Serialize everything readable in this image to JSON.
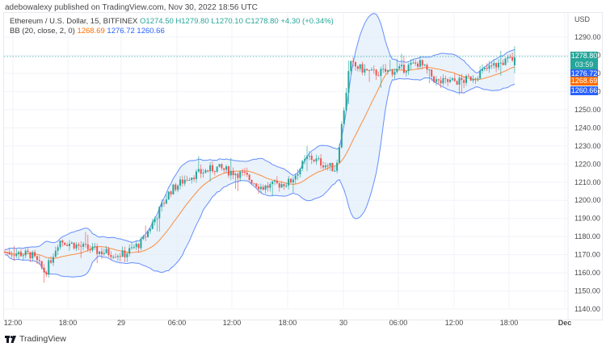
{
  "header": {
    "publisher_line": "adebowalexy published on TradingView.com, Nov 30, 2022 18:56 UTC"
  },
  "legend": {
    "symbol": "Ethereum / U.S. Dollar, 15, BITFINEX",
    "open": "O1274.50",
    "high": "H1279.80",
    "low": "L1270.10",
    "close": "C1278.80",
    "change": "+4.30 (+0.34%)",
    "bb_label": "BB (20, close, 2, 0)",
    "bb_basis": "1268.69",
    "bb_upper": "1276.72",
    "bb_lower": "1260.66"
  },
  "price_axis": {
    "currency": "USD",
    "ticks": [
      "1290.00",
      "1280.00",
      "1270.00",
      "1260.00",
      "1250.00",
      "1240.00",
      "1230.00",
      "1220.00",
      "1210.00",
      "1200.00",
      "1190.00",
      "1180.00",
      "1170.00",
      "1160.00",
      "1150.00",
      "1140.00"
    ],
    "tags": {
      "last_price": "1278.80",
      "countdown": "03:59",
      "bb_upper": "1276.72",
      "bb_basis": "1268.69",
      "bb_lower": "1260.66"
    }
  },
  "time_axis": {
    "labels": [
      "12:00",
      "18:00",
      "29",
      "06:00",
      "12:00",
      "18:00",
      "30",
      "06:00",
      "12:00",
      "18:00",
      "Dec"
    ]
  },
  "footer": {
    "brand": "TradingView"
  },
  "colors": {
    "up": "#26a69a",
    "down": "#ef5350",
    "bb_band": "#2962ff",
    "bb_basis": "#ff6d00",
    "bb_fill": "#e3eefa",
    "grid": "#f0f3fa",
    "last_price_tag": "#26a69a",
    "upper_tag": "#2962ff",
    "basis_tag": "#ff6d00",
    "lower_tag": "#2962ff"
  },
  "chart_data": {
    "type": "candlestick",
    "title": "Ethereum / U.S. Dollar, 15, BITFINEX",
    "xlabel": "",
    "ylabel": "USD",
    "ylim": [
      1135,
      1300
    ],
    "grid": true,
    "x_ticks": [
      "Nov 28 12:00",
      "Nov 28 18:00",
      "Nov 29",
      "Nov 29 06:00",
      "Nov 29 12:00",
      "Nov 29 18:00",
      "Nov 30",
      "Nov 30 06:00",
      "Nov 30 12:00",
      "Nov 30 18:00",
      "Dec"
    ],
    "last": {
      "open": 1274.5,
      "high": 1279.8,
      "low": 1270.1,
      "close": 1278.8,
      "change": 4.3,
      "change_pct": 0.34
    },
    "indicators": {
      "bollinger_bands": {
        "length": 20,
        "source": "close",
        "mult": 2,
        "offset": 0,
        "basis": 1268.69,
        "upper": 1276.72,
        "lower": 1260.66
      }
    },
    "approx_close_path": [
      {
        "t": "Nov 28 10:00",
        "close": 1172
      },
      {
        "t": "Nov 28 14:00",
        "close": 1170
      },
      {
        "t": "Nov 28 15:30",
        "close": 1160
      },
      {
        "t": "Nov 28 17:00",
        "close": 1178
      },
      {
        "t": "Nov 28 21:00",
        "close": 1172
      },
      {
        "t": "Nov 29 00:00",
        "close": 1170
      },
      {
        "t": "Nov 29 02:00",
        "close": 1177
      },
      {
        "t": "Nov 29 05:00",
        "close": 1205
      },
      {
        "t": "Nov 29 07:00",
        "close": 1213
      },
      {
        "t": "Nov 29 10:00",
        "close": 1218
      },
      {
        "t": "Nov 29 13:00",
        "close": 1214
      },
      {
        "t": "Nov 29 15:00",
        "close": 1207
      },
      {
        "t": "Nov 29 18:00",
        "close": 1210
      },
      {
        "t": "Nov 29 20:00",
        "close": 1224
      },
      {
        "t": "Nov 29 23:00",
        "close": 1217
      },
      {
        "t": "Nov 30 00:30",
        "close": 1275
      },
      {
        "t": "Nov 30 03:00",
        "close": 1270
      },
      {
        "t": "Nov 30 06:00",
        "close": 1272
      },
      {
        "t": "Nov 30 08:00",
        "close": 1276
      },
      {
        "t": "Nov 30 10:00",
        "close": 1265
      },
      {
        "t": "Nov 30 13:00",
        "close": 1266
      },
      {
        "t": "Nov 30 16:00",
        "close": 1274
      },
      {
        "t": "Nov 30 18:30",
        "close": 1278.8
      }
    ]
  }
}
